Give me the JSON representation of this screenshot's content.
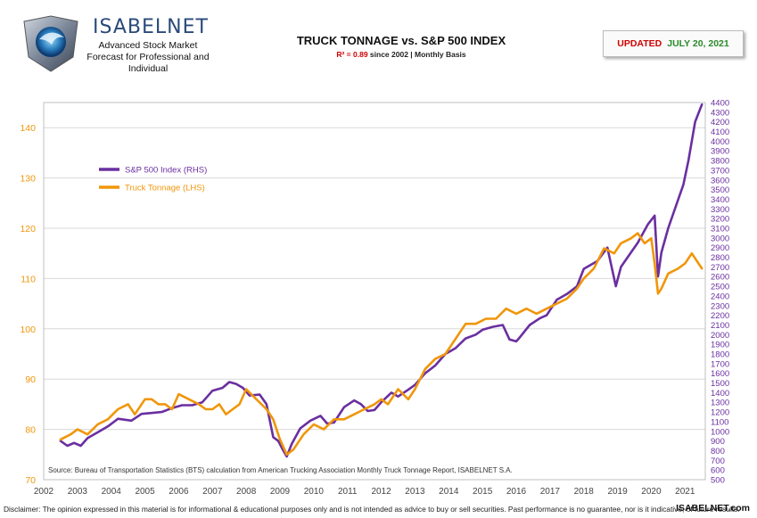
{
  "header": {
    "brand": "ISABELNET",
    "brand_sub": "Advanced Stock Market Forecast for Professional and Individual",
    "title": "TRUCK TONNAGE vs. S&P 500 INDEX",
    "subtitle_r2": "R² = 0.89",
    "subtitle_rest": "since 2002 | Monthly Basis",
    "updated_label": "UPDATED",
    "updated_date": "JULY 20, 2021"
  },
  "footer": {
    "disclaimer": "Disclaimer: The opinion expressed in this material is for informational & educational purposes only and is not intended as advice to buy or sell securities. Past performance is no guarantee, nor is it indicative, of future results.",
    "site": "ISABELNET.com"
  },
  "colors": {
    "sp500": "#6a2fa0",
    "truck": "#f0960a",
    "left_axis": "#f0960a",
    "right_axis": "#6a2fa0",
    "grid": "#d9d9d9"
  },
  "chart_data": {
    "type": "line",
    "source": "Source: Bureau of Transportation Statistics (BTS) calculation from American Trucking Association Monthly Truck Tonnage Report, ISABELNET S.A.",
    "xlim": [
      2002,
      2021.6
    ],
    "x_ticks": [
      "2002",
      "2003",
      "2004",
      "2005",
      "2006",
      "2007",
      "2008",
      "2009",
      "2010",
      "2011",
      "2012",
      "2013",
      "2014",
      "2015",
      "2016",
      "2017",
      "2018",
      "2019",
      "2020",
      "2021"
    ],
    "y_left": {
      "lim": [
        70,
        145
      ],
      "ticks": [
        "70",
        "80",
        "90",
        "100",
        "110",
        "120",
        "130",
        "140"
      ]
    },
    "y_right": {
      "lim": [
        500,
        4400
      ],
      "ticks": [
        "500",
        "600",
        "700",
        "800",
        "900",
        "1000",
        "1100",
        "1200",
        "1300",
        "1400",
        "1500",
        "1600",
        "1700",
        "1800",
        "1900",
        "2000",
        "2100",
        "2200",
        "2300",
        "2400",
        "2500",
        "2600",
        "2700",
        "2800",
        "2900",
        "3000",
        "3100",
        "3200",
        "3300",
        "3400",
        "3500",
        "3600",
        "3700",
        "3800",
        "3900",
        "4000",
        "4100",
        "4200",
        "4300",
        "4400"
      ]
    },
    "legend": "upper-left",
    "series": [
      {
        "name": "S&P 500 Index (RHS)",
        "axis": "right",
        "x": [
          2002.5,
          2002.7,
          2002.9,
          2003.1,
          2003.3,
          2003.6,
          2003.9,
          2004.2,
          2004.6,
          2004.9,
          2005.2,
          2005.5,
          2005.8,
          2006.1,
          2006.4,
          2006.7,
          2007.0,
          2007.3,
          2007.5,
          2007.7,
          2007.9,
          2008.1,
          2008.4,
          2008.6,
          2008.8,
          2008.95,
          2009.1,
          2009.2,
          2009.35,
          2009.6,
          2009.9,
          2010.2,
          2010.4,
          2010.6,
          2010.9,
          2011.2,
          2011.4,
          2011.6,
          2011.8,
          2012.0,
          2012.3,
          2012.5,
          2012.8,
          2013.0,
          2013.3,
          2013.6,
          2013.9,
          2014.2,
          2014.5,
          2014.8,
          2015.0,
          2015.3,
          2015.6,
          2015.8,
          2016.0,
          2016.1,
          2016.4,
          2016.7,
          2016.9,
          2017.2,
          2017.5,
          2017.8,
          2018.0,
          2018.1,
          2018.4,
          2018.7,
          2018.95,
          2019.1,
          2019.4,
          2019.6,
          2019.9,
          2020.1,
          2020.2,
          2020.3,
          2020.5,
          2020.8,
          2020.95,
          2021.1,
          2021.3,
          2021.5
        ],
        "y": [
          900,
          850,
          880,
          850,
          930,
          990,
          1050,
          1130,
          1110,
          1180,
          1190,
          1200,
          1240,
          1270,
          1270,
          1300,
          1420,
          1450,
          1510,
          1490,
          1450,
          1370,
          1380,
          1280,
          940,
          900,
          800,
          740,
          870,
          1030,
          1110,
          1160,
          1080,
          1090,
          1250,
          1320,
          1280,
          1210,
          1220,
          1300,
          1400,
          1360,
          1430,
          1480,
          1600,
          1680,
          1800,
          1860,
          1960,
          2000,
          2050,
          2080,
          2100,
          1950,
          1930,
          1970,
          2100,
          2170,
          2200,
          2360,
          2420,
          2500,
          2680,
          2700,
          2760,
          2900,
          2500,
          2700,
          2850,
          2950,
          3140,
          3230,
          2600,
          2850,
          3100,
          3400,
          3550,
          3800,
          4200,
          4380
        ]
      },
      {
        "name": "Truck Tonnage (LHS)",
        "axis": "left",
        "x": [
          2002.5,
          2002.8,
          2003.0,
          2003.3,
          2003.6,
          2003.9,
          2004.2,
          2004.5,
          2004.7,
          2005.0,
          2005.2,
          2005.4,
          2005.6,
          2005.8,
          2006.0,
          2006.3,
          2006.6,
          2006.8,
          2007.0,
          2007.2,
          2007.4,
          2007.6,
          2007.8,
          2008.0,
          2008.3,
          2008.6,
          2008.8,
          2009.0,
          2009.2,
          2009.4,
          2009.7,
          2010.0,
          2010.3,
          2010.6,
          2010.9,
          2011.2,
          2011.5,
          2011.8,
          2012.0,
          2012.2,
          2012.5,
          2012.8,
          2013.0,
          2013.3,
          2013.6,
          2013.9,
          2014.2,
          2014.5,
          2014.8,
          2015.1,
          2015.4,
          2015.7,
          2016.0,
          2016.3,
          2016.6,
          2016.9,
          2017.2,
          2017.5,
          2017.8,
          2018.0,
          2018.3,
          2018.6,
          2018.9,
          2019.1,
          2019.4,
          2019.6,
          2019.8,
          2020.0,
          2020.1,
          2020.2,
          2020.3,
          2020.5,
          2020.8,
          2021.0,
          2021.2,
          2021.4,
          2021.5
        ],
        "y": [
          78,
          79,
          80,
          79,
          81,
          82,
          84,
          85,
          83,
          86,
          86,
          85,
          85,
          84,
          87,
          86,
          85,
          84,
          84,
          85,
          83,
          84,
          85,
          88,
          86,
          84,
          82,
          78,
          75,
          76,
          79,
          81,
          80,
          82,
          82,
          83,
          84,
          85,
          86,
          85,
          88,
          86,
          88,
          92,
          94,
          95,
          98,
          101,
          101,
          102,
          102,
          104,
          103,
          104,
          103,
          104,
          105,
          106,
          108,
          110,
          112,
          116,
          115,
          117,
          118,
          119,
          117,
          118,
          113,
          107,
          108,
          111,
          112,
          113,
          115,
          113,
          112
        ]
      }
    ]
  }
}
